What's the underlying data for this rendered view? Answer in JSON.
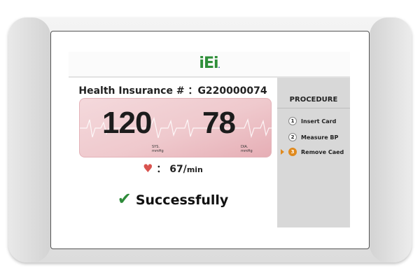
{
  "brand": {
    "logo": "iEi",
    "logo_colors": {
      "green": "#2f8f3a",
      "red": "#d0202a",
      "blue": "#1c3f9a"
    }
  },
  "patient": {
    "label": "Health Insurance # ：",
    "id": "G220000074"
  },
  "bp": {
    "systolic": "120",
    "sys_label": "SYS.",
    "sys_unit": "mmHg",
    "diastolic": "78",
    "dia_label": "DIA.",
    "dia_unit": "mmHg"
  },
  "pulse": {
    "icon": "heart-ecg-icon",
    "separator": "：",
    "value": "67/",
    "unit": "min"
  },
  "status": {
    "icon": "checkmark-icon",
    "text": "Successfully",
    "color": "#2e8b3a"
  },
  "procedure": {
    "title": "PROCEDURE",
    "steps": [
      {
        "num": "1",
        "label": "Insert Card",
        "active": false
      },
      {
        "num": "2",
        "label": "Measure BP",
        "active": false
      },
      {
        "num": "3",
        "label": "Remove Caed",
        "active": true
      }
    ],
    "active_color": "#e08a1e"
  }
}
